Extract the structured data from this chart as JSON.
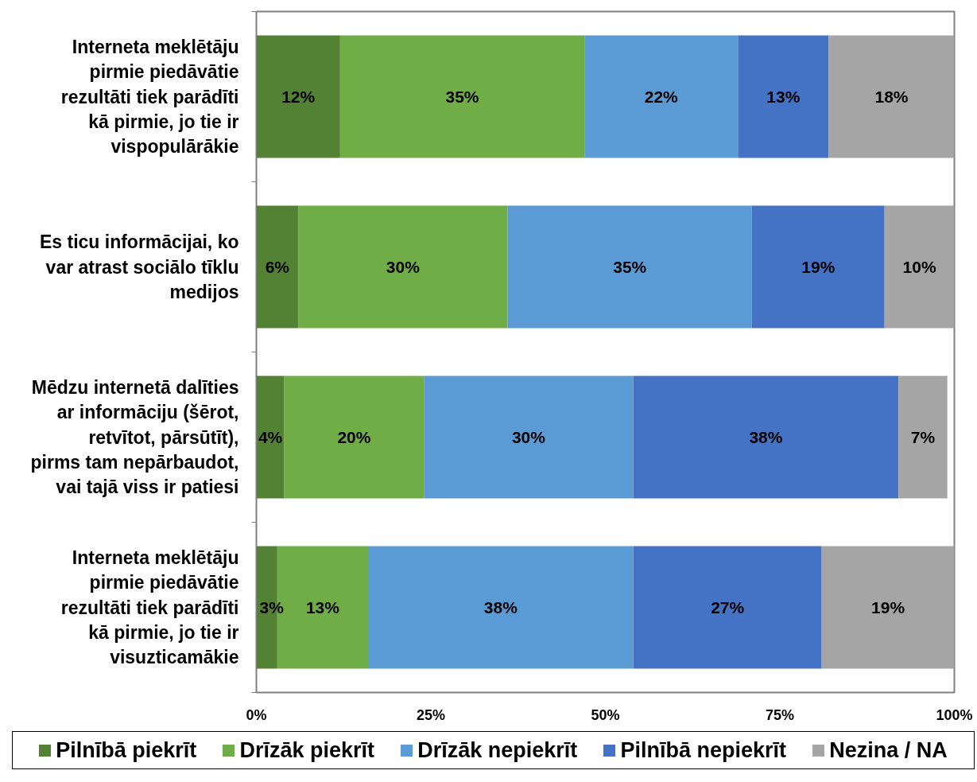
{
  "chart_data": {
    "type": "bar",
    "orientation": "horizontal",
    "stacked": true,
    "categories": [
      "Interneta meklētāju pirmie piedāvātie rezultāti tiek parādīti kā pirmie, jo tie ir vispopulārākie",
      "Es ticu informācijai, ko var atrast sociālo tīklu medijos",
      "Mēdzu internetā dalīties ar informāciju (šērot, retvītot, pārsūtīt), pirms tam nepārbaudot, vai tajā viss ir patiesi",
      "Interneta meklētāju pirmie piedāvātie rezultāti tiek parādīti kā pirmie, jo tie ir visuzticamākie"
    ],
    "series": [
      {
        "name": "Pilnībā piekrīt",
        "color": "#548235",
        "values": [
          12,
          6,
          4,
          3
        ],
        "value_labels": [
          "12%",
          "6%",
          "4%",
          "3%"
        ]
      },
      {
        "name": "Drīzāk piekrīt",
        "color": "#70ad47",
        "values": [
          35,
          30,
          20,
          13
        ],
        "value_labels": [
          "35%",
          "30%",
          "20%",
          "13%"
        ]
      },
      {
        "name": "Drīzāk nepiekrīt",
        "color": "#5b9bd5",
        "values": [
          22,
          35,
          30,
          38
        ],
        "value_labels": [
          "22%",
          "35%",
          "30%",
          "38%"
        ]
      },
      {
        "name": "Pilnībā nepiekrīt",
        "color": "#4472c4",
        "values": [
          13,
          19,
          38,
          27
        ],
        "value_labels": [
          "13%",
          "19%",
          "38%",
          "27%"
        ]
      },
      {
        "name": "Nezina / NA",
        "color": "#a5a5a5",
        "values": [
          18,
          10,
          7,
          19
        ],
        "value_labels": [
          "18%",
          "10%",
          "7%",
          "19%"
        ]
      }
    ],
    "xlim": [
      0,
      100
    ],
    "xticks": [
      {
        "value": 0,
        "label": "0%"
      },
      {
        "value": 25,
        "label": "25%"
      },
      {
        "value": 50,
        "label": "50%"
      },
      {
        "value": 75,
        "label": "75%"
      },
      {
        "value": 100,
        "label": "100%"
      }
    ],
    "grid": false,
    "legend": "bottom"
  }
}
